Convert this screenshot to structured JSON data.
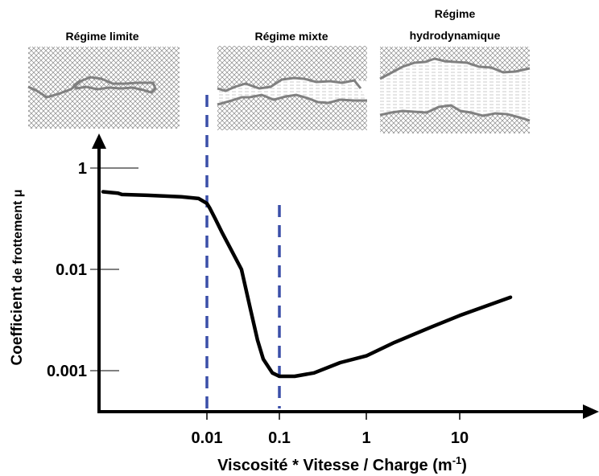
{
  "regimes": [
    {
      "name": "Régime limite"
    },
    {
      "name": "Régime mixte"
    },
    {
      "name": "Régime",
      "name_line2": "hydrodynamique"
    }
  ],
  "colors": {
    "curve": "#000000",
    "axis": "#000000",
    "dashed": "#3a4fa8",
    "surface_line": "#808080",
    "hatch": "#8c8c8c",
    "fluid": "#b4b4b4"
  },
  "chart_data": {
    "type": "line",
    "xlabel": "Viscosité * Vitesse / Charge (m",
    "xlabel_sup": "-1",
    "xlabel_end": ")",
    "ylabel_bold": "Coefficient",
    "ylabel_rest": " de frottement μ",
    "x_scale": "log",
    "x_ticks": [
      {
        "label": "0.01",
        "value": 0.01
      },
      {
        "label": "0.1",
        "value": 0.1
      },
      {
        "label": "1",
        "value": 1
      },
      {
        "label": "10",
        "value": 10
      }
    ],
    "y_ticks": [
      {
        "label": "1",
        "value": 1
      },
      {
        "label": "0.01",
        "value": 0.01
      },
      {
        "label": "0.001",
        "value": 0.001
      }
    ],
    "boundaries_x": [
      0.01,
      0.1
    ],
    "series": [
      {
        "x": [
          0.0006,
          0.0009,
          0.001,
          0.002,
          0.005,
          0.008,
          0.01,
          0.011,
          0.013,
          0.016,
          0.02,
          0.03,
          0.04,
          0.05,
          0.06,
          0.08,
          0.1,
          0.15,
          0.25,
          0.5,
          1,
          2,
          5,
          10,
          35
        ],
        "y": [
          0.34,
          0.32,
          0.3,
          0.29,
          0.27,
          0.25,
          0.2,
          0.16,
          0.1,
          0.055,
          0.03,
          0.01,
          0.004,
          0.002,
          0.0013,
          0.00095,
          0.00088,
          0.00088,
          0.00095,
          0.0012,
          0.0014,
          0.0019,
          0.0027,
          0.0035,
          0.0053
        ]
      }
    ]
  }
}
